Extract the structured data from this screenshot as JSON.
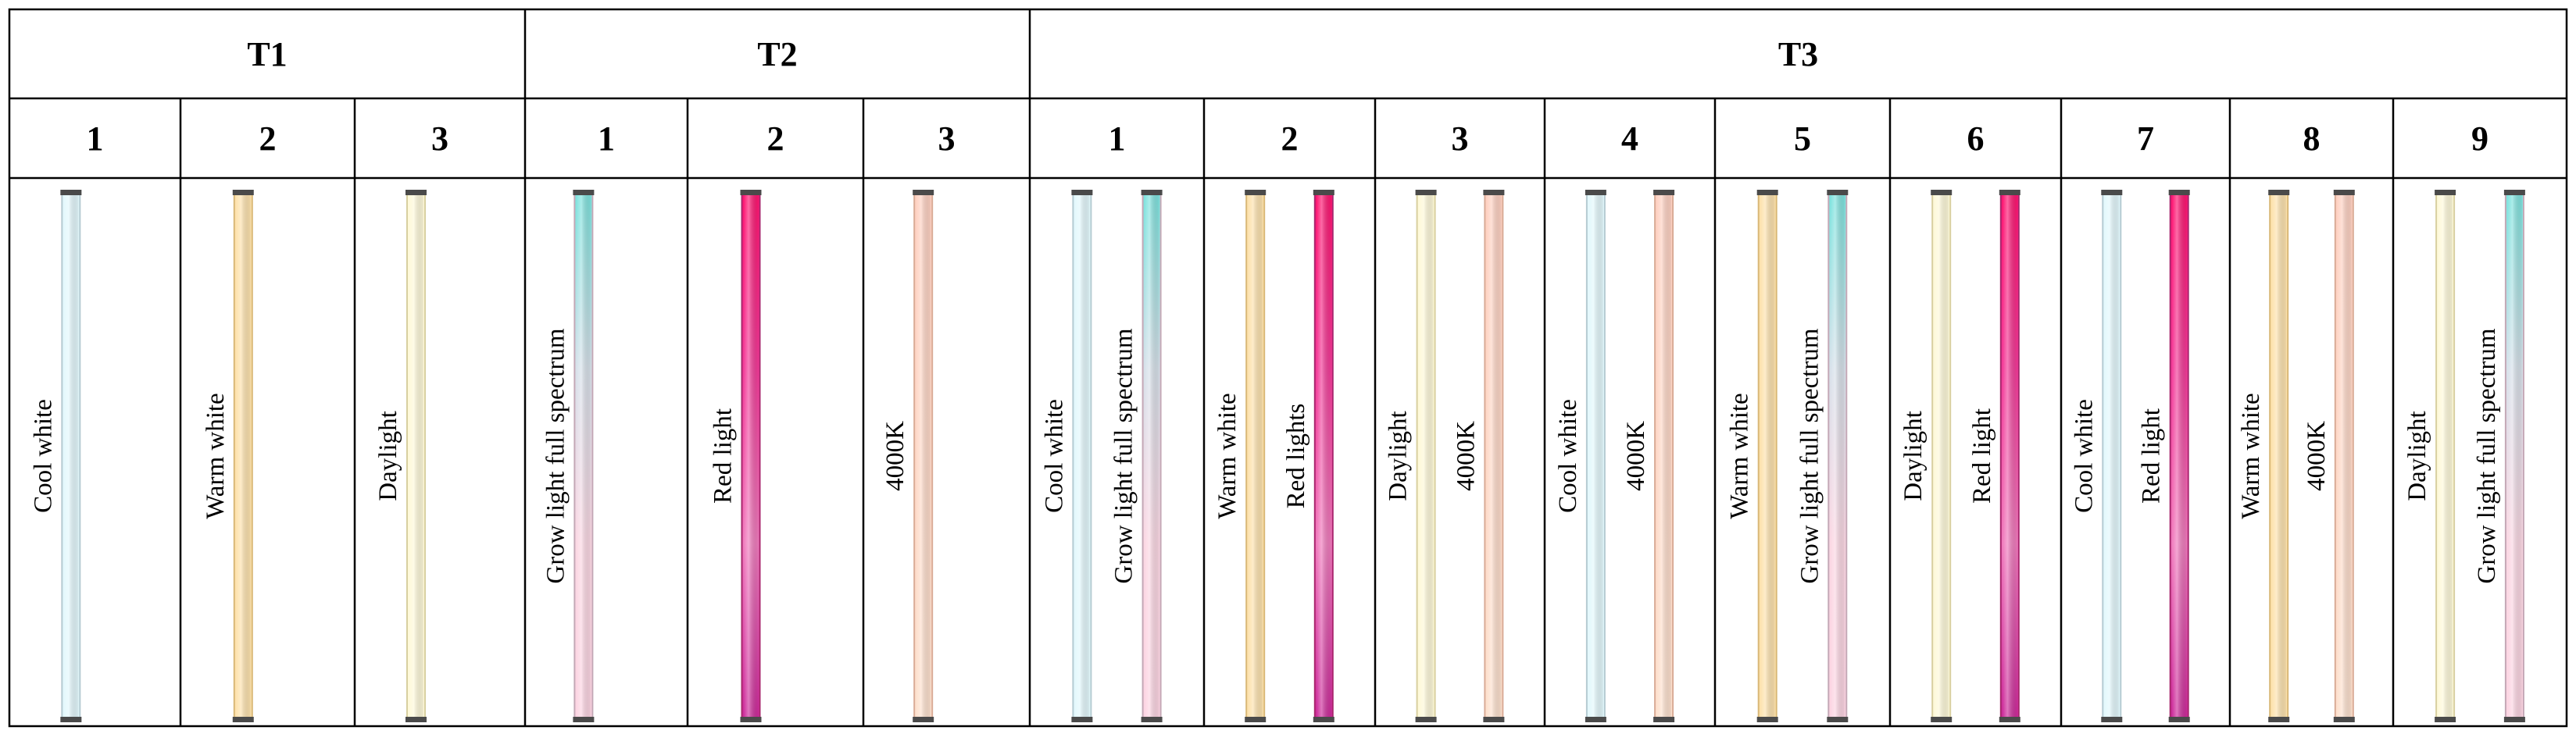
{
  "table": {
    "groups": [
      {
        "label": "T1",
        "columns": [
          {
            "number": "1",
            "tubes": [
              {
                "label": "Cool white",
                "color": "cool_white"
              }
            ]
          },
          {
            "number": "2",
            "tubes": [
              {
                "label": "Warm white",
                "color": "warm_white"
              }
            ]
          },
          {
            "number": "3",
            "tubes": [
              {
                "label": "Daylight",
                "color": "daylight"
              }
            ]
          }
        ]
      },
      {
        "label": "T2",
        "columns": [
          {
            "number": "1",
            "tubes": [
              {
                "label": "Grow light full spectrum",
                "color": "grow_full"
              }
            ]
          },
          {
            "number": "2",
            "tubes": [
              {
                "label": "Red light",
                "color": "red"
              }
            ]
          },
          {
            "number": "3",
            "tubes": [
              {
                "label": "4000K",
                "color": "k4000"
              }
            ]
          }
        ]
      },
      {
        "label": "T3",
        "columns": [
          {
            "number": "1",
            "tubes": [
              {
                "label": "Cool white",
                "color": "cool_white"
              },
              {
                "label": "Grow light full spectrum",
                "color": "grow_full"
              }
            ]
          },
          {
            "number": "2",
            "tubes": [
              {
                "label": "Warm white",
                "color": "warm_white"
              },
              {
                "label": "Red lights",
                "color": "red"
              }
            ]
          },
          {
            "number": "3",
            "tubes": [
              {
                "label": "Daylight",
                "color": "daylight"
              },
              {
                "label": "4000K",
                "color": "k4000"
              }
            ]
          },
          {
            "number": "4",
            "tubes": [
              {
                "label": "Cool white",
                "color": "cool_white"
              },
              {
                "label": "4000K",
                "color": "k4000"
              }
            ]
          },
          {
            "number": "5",
            "tubes": [
              {
                "label": "Warm white",
                "color": "warm_white"
              },
              {
                "label": "Grow light full spectrum",
                "color": "grow_full"
              }
            ]
          },
          {
            "number": "6",
            "tubes": [
              {
                "label": "Daylight",
                "color": "daylight"
              },
              {
                "label": "Red light",
                "color": "red"
              }
            ]
          },
          {
            "number": "7",
            "tubes": [
              {
                "label": "Cool white",
                "color": "cool_white"
              },
              {
                "label": "Red light",
                "color": "red"
              }
            ]
          },
          {
            "number": "8",
            "tubes": [
              {
                "label": "Warm white",
                "color": "warm_white"
              },
              {
                "label": "4000K",
                "color": "k4000"
              }
            ]
          },
          {
            "number": "9",
            "tubes": [
              {
                "label": "Daylight",
                "color": "daylight"
              },
              {
                "label": "Grow light full spectrum",
                "color": "grow_full"
              }
            ]
          }
        ]
      }
    ]
  },
  "tube_colors": {
    "cool_white": {
      "stops": [
        "#e3f8fc",
        "#e3f8fc"
      ],
      "border": "#b5cbd2"
    },
    "warm_white": {
      "stops": [
        "#fde2ad",
        "#fde2ad"
      ],
      "border": "#d9b877"
    },
    "daylight": {
      "stops": [
        "#fef9d9",
        "#fef9d9"
      ],
      "border": "#d8cfa0"
    },
    "grow_full": {
      "stops": [
        "#7ce3de",
        "#d7e1ea",
        "#fbd7e3",
        "#fcd4e2"
      ],
      "border": "#c4a8b6"
    },
    "red": {
      "stops": [
        "#ff1470",
        "#f33a98",
        "#f07bbd",
        "#cc2a9a"
      ],
      "border": "#a9266e"
    },
    "k4000": {
      "stops": [
        "#fed0c1",
        "#fde1ce"
      ],
      "border": "#d9ab96"
    },
    "cap": "#4a4a4a"
  }
}
